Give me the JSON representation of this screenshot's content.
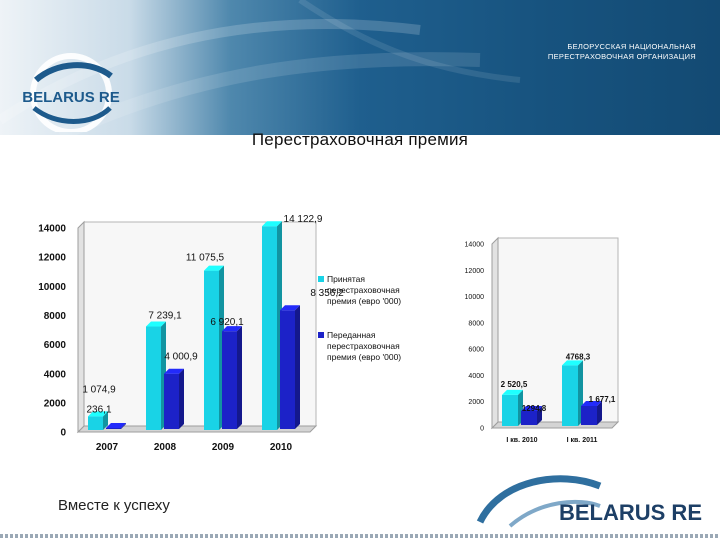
{
  "header": {
    "org_line1": "БЕЛОРУССКАЯ НАЦИОНАЛЬНАЯ",
    "org_line2": "ПЕРЕСТРАХОВОЧНАЯ ОРГАНИЗАЦИЯ",
    "logo_text": "BELARUS RE"
  },
  "title": "Перестраховочная премия",
  "footer": {
    "slogan": "Вместе к успеху",
    "logo_text": "BELARUS RE"
  },
  "colors": {
    "accepted": "#19d3e6",
    "ceded": "#1c22c8",
    "brand_blue": "#1d5a8c"
  },
  "chart_data": [
    {
      "type": "bar",
      "categories": [
        "2007",
        "2008",
        "2009",
        "2010"
      ],
      "series": [
        {
          "name": "Принятая перестраховочная премия (евро '000)",
          "values": [
            1074.9,
            7239.1,
            11075.5,
            14122.9
          ],
          "labels": [
            "1 074,9",
            "7 239,1",
            "11 075,5",
            "14 122,9"
          ]
        },
        {
          "name": "Переданная перестраховочная премия (евро '000)",
          "values": [
            236.1,
            4000.9,
            6920.1,
            8356.2
          ],
          "labels": [
            "236,1",
            "4 000,9",
            "6 920,1",
            "8 356,2"
          ]
        }
      ],
      "ylim": [
        0,
        14000
      ],
      "yticks": [
        "0",
        "2000",
        "4000",
        "6000",
        "8000",
        "10000",
        "12000",
        "14000"
      ],
      "legend_position": "right",
      "legend": [
        [
          "Принятая",
          "перестраховочная",
          "премия (евро '000)"
        ],
        [
          "Переданная",
          "перестраховочная",
          "премия (евро '000)"
        ]
      ]
    },
    {
      "type": "bar",
      "categories": [
        "I кв. 2010",
        "I кв. 2011"
      ],
      "series": [
        {
          "values": [
            2520.5,
            4768.3
          ],
          "labels": [
            "2 520,5",
            "4768,3"
          ]
        },
        {
          "values": [
            1294.8,
            1677.1
          ],
          "labels": [
            "1294,8",
            "1 677,1"
          ]
        }
      ],
      "ylim": [
        0,
        14000
      ],
      "yticks": [
        "0",
        "2000",
        "4000",
        "6000",
        "8000",
        "10000",
        "12000",
        "14000"
      ]
    }
  ]
}
